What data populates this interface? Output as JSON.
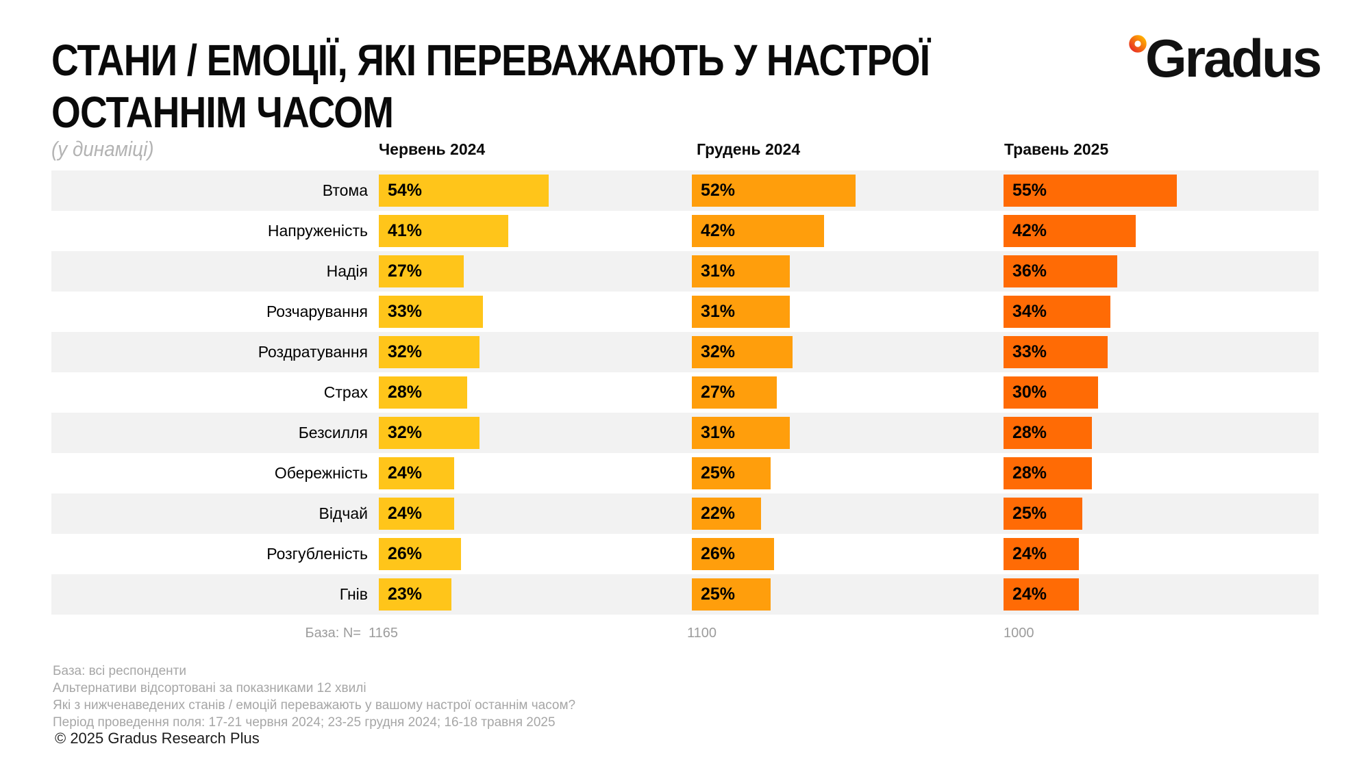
{
  "header": {
    "title_line1": "СТАНИ / ЕМОЦІЇ, ЯКІ ПЕРЕВАЖАЮТЬ У НАСТРОЇ",
    "title_line2": "ОСТАННІМ ЧАСОМ",
    "subtitle": "(у динаміці)",
    "logo_text": "Gradus",
    "logo_icon": "degree-ring-icon",
    "logo_ring_colors": [
      "#E93223",
      "#FFAE00"
    ]
  },
  "chart_data": {
    "type": "bar",
    "orientation": "horizontal",
    "title": "СТАНИ / ЕМОЦІЇ, ЯКІ ПЕРЕВАЖАЮТЬ У НАСТРОЇ ОСТАННІМ ЧАСОМ",
    "subtitle": "(у динаміці)",
    "value_suffix": "%",
    "xlim": [
      0,
      100
    ],
    "grid": false,
    "value_labels": "inside-left",
    "row_band_color": "#F2F2F2",
    "categories": [
      "Втома",
      "Напруженість",
      "Надія",
      "Розчарування",
      "Роздратування",
      "Страх",
      "Безсилля",
      "Обережність",
      "Відчай",
      "Розгубленість",
      "Гнів"
    ],
    "series": [
      {
        "name": "Червень 2024",
        "color": "#FFC51A",
        "base": "1165",
        "values": [
          54,
          41,
          27,
          33,
          32,
          28,
          32,
          24,
          24,
          26,
          23
        ]
      },
      {
        "name": "Грудень 2024",
        "color": "#FF9E0C",
        "base": "1100",
        "values": [
          52,
          42,
          31,
          31,
          32,
          27,
          31,
          25,
          22,
          26,
          25
        ]
      },
      {
        "name": "Травень 2025",
        "color": "#FF6B05",
        "base": "1000",
        "values": [
          55,
          42,
          36,
          34,
          33,
          30,
          28,
          28,
          25,
          24,
          24
        ]
      }
    ],
    "base_label": "База: N="
  },
  "footer": {
    "notes": [
      "База: всі респонденти",
      "Альтернативи відсортовані за показниками 12 хвилі",
      "Які з нижченаведених станів / емоцій переважають у вашому настрої останнім часом?",
      "Період проведення поля: 17-21 червня 2024; 23-25 грудня 2024; 16-18 травня 2025"
    ],
    "copyright": "© 2025 Gradus Research Plus"
  }
}
